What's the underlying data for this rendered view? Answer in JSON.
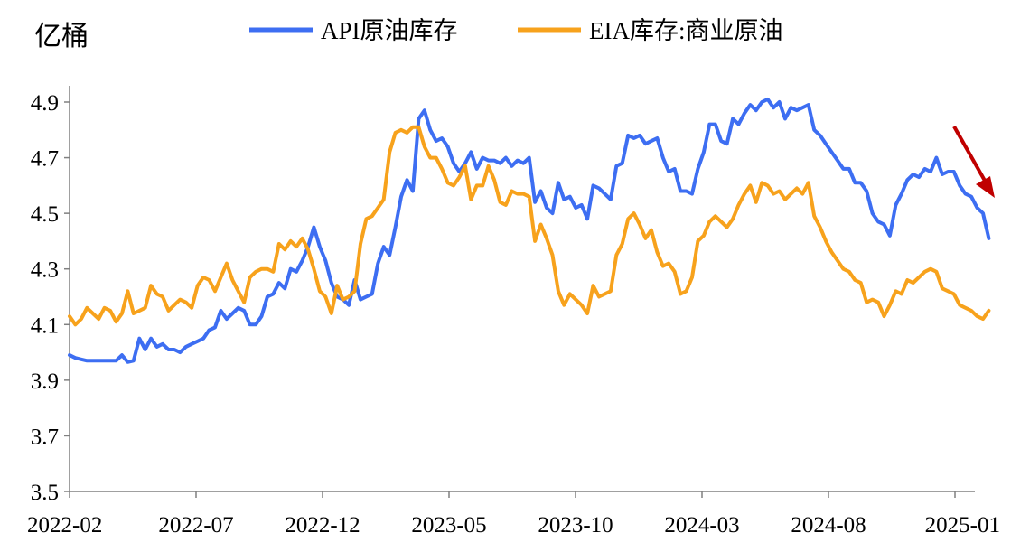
{
  "chart_data": {
    "type": "line",
    "unit_label": "亿桶",
    "ylim": [
      3.5,
      4.95
    ],
    "y_ticks": [
      "4.9",
      "4.7",
      "4.5",
      "4.3",
      "4.1",
      "3.9",
      "3.7",
      "3.5"
    ],
    "x_ticks": [
      "2022-02",
      "2022-07",
      "2022-12",
      "2023-05",
      "2023-10",
      "2024-03",
      "2024-08",
      "2025-01"
    ],
    "grid": false,
    "legend_position": "top",
    "annotation": "red-down-arrow",
    "colors": {
      "api": "#3D6EF2",
      "eia": "#F7A21C",
      "arrow": "#C00000",
      "axis": "#808080"
    },
    "series": [
      {
        "name": "API原油库存",
        "color": "#3D6EF2",
        "values": [
          3.99,
          3.98,
          3.975,
          3.97,
          3.97,
          3.97,
          3.97,
          3.97,
          3.97,
          3.99,
          3.965,
          3.97,
          4.05,
          4.01,
          4.05,
          4.02,
          4.03,
          4.01,
          4.01,
          4.0,
          4.02,
          4.03,
          4.04,
          4.05,
          4.08,
          4.09,
          4.15,
          4.12,
          4.14,
          4.16,
          4.15,
          4.1,
          4.1,
          4.13,
          4.2,
          4.21,
          4.25,
          4.23,
          4.3,
          4.29,
          4.33,
          4.38,
          4.45,
          4.38,
          4.33,
          4.25,
          4.2,
          4.19,
          4.17,
          4.26,
          4.19,
          4.2,
          4.21,
          4.32,
          4.38,
          4.35,
          4.45,
          4.56,
          4.62,
          4.58,
          4.84,
          4.87,
          4.8,
          4.76,
          4.77,
          4.74,
          4.68,
          4.65,
          4.68,
          4.72,
          4.66,
          4.7,
          4.69,
          4.69,
          4.68,
          4.7,
          4.67,
          4.69,
          4.68,
          4.7,
          4.54,
          4.58,
          4.52,
          4.5,
          4.61,
          4.55,
          4.56,
          4.52,
          4.53,
          4.48,
          4.6,
          4.59,
          4.57,
          4.55,
          4.67,
          4.68,
          4.78,
          4.77,
          4.78,
          4.75,
          4.76,
          4.77,
          4.7,
          4.65,
          4.66,
          4.58,
          4.58,
          4.57,
          4.66,
          4.72,
          4.82,
          4.82,
          4.76,
          4.75,
          4.84,
          4.82,
          4.86,
          4.89,
          4.87,
          4.9,
          4.91,
          4.88,
          4.9,
          4.84,
          4.88,
          4.87,
          4.88,
          4.89,
          4.8,
          4.78,
          4.75,
          4.72,
          4.69,
          4.66,
          4.66,
          4.61,
          4.61,
          4.58,
          4.5,
          4.47,
          4.46,
          4.42,
          4.53,
          4.57,
          4.62,
          4.64,
          4.63,
          4.66,
          4.65,
          4.7,
          4.64,
          4.65,
          4.65,
          4.6,
          4.57,
          4.56,
          4.52,
          4.5,
          4.41
        ]
      },
      {
        "name": "EIA库存:商业原油",
        "color": "#F7A21C",
        "values": [
          4.13,
          4.1,
          4.12,
          4.16,
          4.14,
          4.12,
          4.16,
          4.15,
          4.11,
          4.14,
          4.22,
          4.14,
          4.15,
          4.16,
          4.24,
          4.21,
          4.2,
          4.15,
          4.17,
          4.19,
          4.18,
          4.16,
          4.24,
          4.27,
          4.26,
          4.22,
          4.27,
          4.32,
          4.26,
          4.22,
          4.18,
          4.27,
          4.29,
          4.3,
          4.3,
          4.29,
          4.39,
          4.37,
          4.4,
          4.38,
          4.41,
          4.37,
          4.3,
          4.22,
          4.2,
          4.14,
          4.24,
          4.19,
          4.2,
          4.22,
          4.39,
          4.48,
          4.49,
          4.52,
          4.55,
          4.72,
          4.79,
          4.8,
          4.79,
          4.81,
          4.81,
          4.74,
          4.7,
          4.7,
          4.66,
          4.61,
          4.6,
          4.63,
          4.67,
          4.55,
          4.6,
          4.6,
          4.67,
          4.62,
          4.54,
          4.53,
          4.58,
          4.57,
          4.57,
          4.56,
          4.4,
          4.46,
          4.41,
          4.35,
          4.22,
          4.17,
          4.21,
          4.19,
          4.17,
          4.14,
          4.24,
          4.2,
          4.21,
          4.22,
          4.35,
          4.39,
          4.48,
          4.5,
          4.46,
          4.41,
          4.44,
          4.36,
          4.31,
          4.32,
          4.29,
          4.21,
          4.22,
          4.27,
          4.4,
          4.42,
          4.47,
          4.49,
          4.47,
          4.45,
          4.48,
          4.53,
          4.57,
          4.6,
          4.54,
          4.61,
          4.6,
          4.57,
          4.58,
          4.55,
          4.57,
          4.59,
          4.57,
          4.61,
          4.49,
          4.45,
          4.4,
          4.36,
          4.33,
          4.3,
          4.29,
          4.26,
          4.25,
          4.18,
          4.19,
          4.18,
          4.13,
          4.17,
          4.22,
          4.21,
          4.26,
          4.25,
          4.27,
          4.29,
          4.3,
          4.29,
          4.23,
          4.22,
          4.21,
          4.17,
          4.16,
          4.15,
          4.13,
          4.12,
          4.15
        ]
      }
    ]
  }
}
